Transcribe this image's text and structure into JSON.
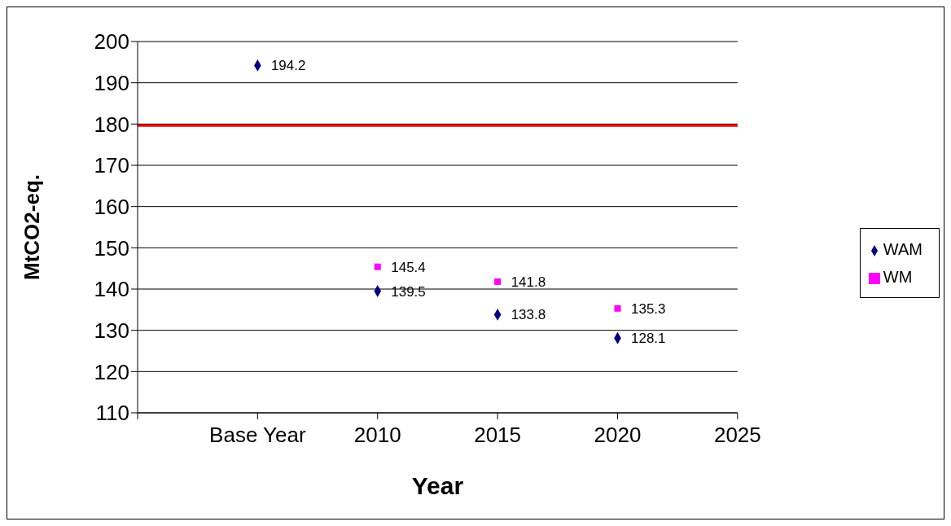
{
  "chart_data": {
    "type": "scatter",
    "xlabel": "Year",
    "ylabel": "MtCO2-eq.",
    "categories": [
      null,
      "Base Year",
      "2010",
      "2015",
      "2020",
      "2025"
    ],
    "series": [
      {
        "name": "WAM",
        "color": "#000080",
        "marker": "diamond",
        "values": [
          null,
          194.2,
          139.5,
          133.8,
          128.1,
          null
        ]
      },
      {
        "name": "WM",
        "color": "#ff00ff",
        "marker": "square",
        "values": [
          null,
          null,
          145.4,
          141.8,
          135.3,
          null
        ]
      }
    ],
    "ylim": [
      110,
      200
    ],
    "yticks": [
      110,
      120,
      130,
      140,
      150,
      160,
      170,
      180,
      190,
      200
    ],
    "ref_lines": [
      {
        "axis": "y",
        "value": 179.6,
        "color": "#ff0000"
      }
    ],
    "grid": "y",
    "legend": "right",
    "data_labels": true
  }
}
